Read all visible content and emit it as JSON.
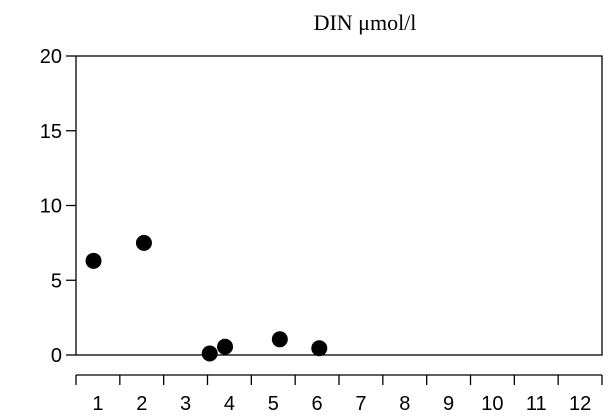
{
  "chart_data": {
    "type": "scatter",
    "title": "DIN    μmol/l",
    "xlabel": "",
    "ylabel": "",
    "xlim": [
      0.5,
      12.5
    ],
    "ylim": [
      0,
      20
    ],
    "grid": false,
    "x_ticks": [
      1,
      2,
      3,
      4,
      5,
      6,
      7,
      8,
      9,
      10,
      11,
      12
    ],
    "y_ticks": [
      0,
      5,
      10,
      15,
      20
    ],
    "series": [
      {
        "x": [
          0.9,
          2.05,
          3.55,
          3.9,
          5.15,
          6.05
        ],
        "y": [
          6.3,
          7.5,
          0.1,
          0.55,
          1.05,
          0.45
        ]
      }
    ],
    "marker_color": "#000000"
  }
}
